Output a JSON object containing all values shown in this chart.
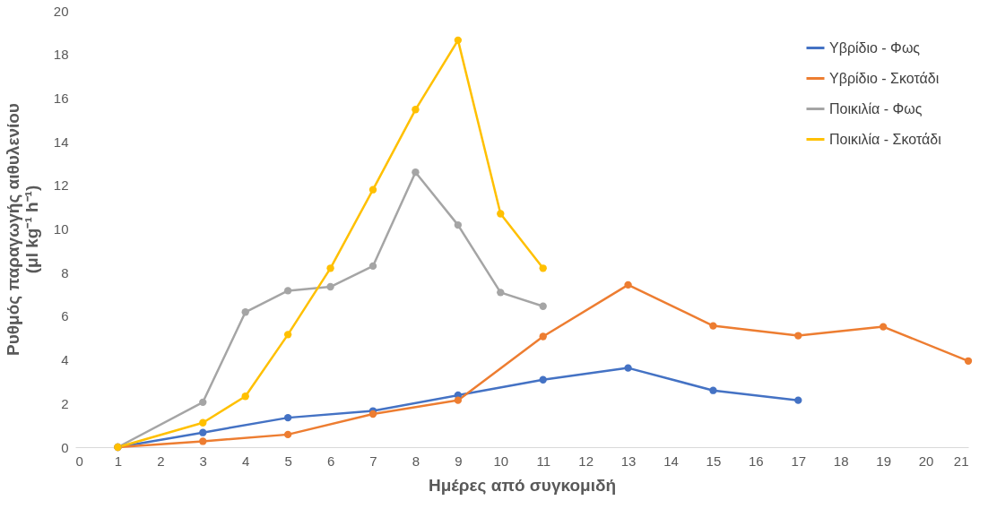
{
  "chart_data": {
    "type": "line",
    "xlabel": "Ημέρες από συγκομιδή",
    "ylabel": "Ρυθμός παραγωγής αιθυλενίου\n(μl kg⁻¹ h⁻¹)",
    "xlim": [
      0,
      21
    ],
    "xticks": [
      0,
      1,
      2,
      3,
      4,
      5,
      6,
      7,
      8,
      9,
      10,
      11,
      12,
      13,
      14,
      15,
      16,
      17,
      18,
      19,
      20,
      21
    ],
    "ylim": [
      0,
      20
    ],
    "yticks": [
      0,
      2,
      4,
      6,
      8,
      10,
      12,
      14,
      16,
      18,
      20
    ],
    "grid": false,
    "legend": "top right",
    "marker": "circle",
    "line_style": "solid",
    "series": [
      {
        "name": "Υβρίδιο - Φως",
        "color": "#4472c4",
        "x": [
          1,
          3,
          5,
          7,
          9,
          11,
          13,
          15,
          17
        ],
        "values": [
          0,
          0.67,
          1.35,
          1.66,
          2.38,
          3.09,
          3.63,
          2.6,
          2.15
        ]
      },
      {
        "name": "Υβρίδιο - Σκοτάδι",
        "color": "#ed7d31",
        "x": [
          1,
          3,
          5,
          7,
          9,
          11,
          13,
          15,
          17,
          19,
          21
        ],
        "values": [
          0,
          0.27,
          0.58,
          1.52,
          2.15,
          5.07,
          7.44,
          5.56,
          5.11,
          5.52,
          3.95
        ]
      },
      {
        "name": "Ποικιλία - Φως",
        "color": "#a5a5a5",
        "x": [
          1,
          3,
          4,
          5,
          6,
          7,
          8,
          9,
          10,
          11
        ],
        "values": [
          0,
          2.06,
          6.19,
          7.17,
          7.35,
          8.3,
          12.6,
          10.18,
          7.09,
          6.46
        ]
      },
      {
        "name": "Ποικιλία - Σκοτάδι",
        "color": "#ffc000",
        "x": [
          1,
          3,
          4,
          5,
          6,
          7,
          8,
          9,
          10,
          11
        ],
        "values": [
          0,
          1.12,
          2.33,
          5.16,
          8.2,
          11.8,
          15.47,
          18.65,
          10.7,
          8.2
        ]
      }
    ]
  }
}
